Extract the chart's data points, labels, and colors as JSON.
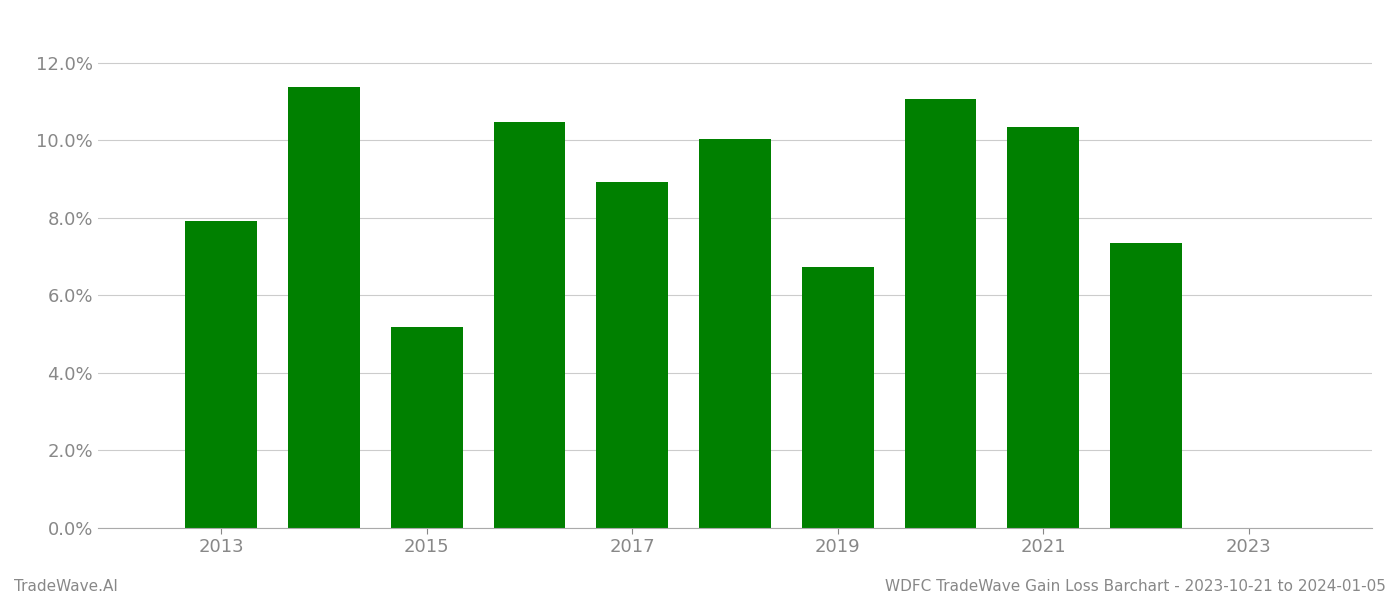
{
  "years": [
    2013,
    2014,
    2015,
    2016,
    2017,
    2018,
    2019,
    2020,
    2021,
    2022
  ],
  "values": [
    0.0793,
    0.1138,
    0.0518,
    0.1048,
    0.0893,
    0.1003,
    0.0672,
    0.1107,
    0.1035,
    0.0735
  ],
  "bar_color": "#008000",
  "background_color": "#ffffff",
  "ylim": [
    0,
    0.13
  ],
  "yticks": [
    0.0,
    0.02,
    0.04,
    0.06,
    0.08,
    0.1,
    0.12
  ],
  "xticks": [
    2013,
    2015,
    2017,
    2019,
    2021,
    2023
  ],
  "xlim": [
    2011.8,
    2024.2
  ],
  "tick_fontsize": 13,
  "grid_color": "#cccccc",
  "footer_left": "TradeWave.AI",
  "footer_right": "WDFC TradeWave Gain Loss Barchart - 2023-10-21 to 2024-01-05",
  "footer_fontsize": 11,
  "bar_width": 0.7
}
